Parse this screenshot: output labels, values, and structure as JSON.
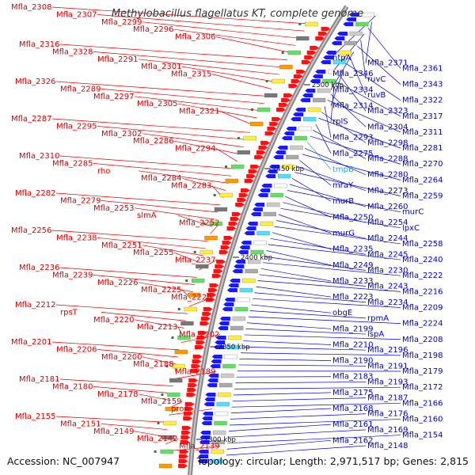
{
  "title": "Methylobacillus flagellatus KT, complete genome",
  "accession": "Accession: NC_007947",
  "topology": "Topology: circular; Length: 2,971,517 bp; Genes: 2,815",
  "colors": {
    "reverse_label": "#e00000",
    "forward_label": "#0000dd",
    "rna_label": "#22aadd",
    "backbone": "#888888",
    "reverse_arrow": "#ff1111",
    "forward_arrow": "#1a1aff",
    "marker": "#228822"
  },
  "kbp_ticks": [
    "2300 kbp",
    "2350 kbp",
    "2400 kbp",
    "2450 kbp",
    "2500 kbp"
  ],
  "left_labels": [
    "Mfla_2308",
    "Mfla_2307",
    "Mfla_2299",
    "Mfla_2296",
    "Mfla_2306",
    "Mfla_2316",
    "Mfla_2328",
    "Mfla_2291",
    "Mfla_2301",
    "Mfla_2315",
    "Mfla_2326",
    "Mfla_2289",
    "Mfla_2297",
    "Mfla_2305",
    "Mfla_2321",
    "Mfla_2287",
    "Mfla_2295",
    "Mfla_2302",
    "Mfla_2286",
    "Mfla_2294",
    "Mfla_2310",
    "Mfla_2285",
    "rho",
    "Mfla_2284",
    "Mfla_2283",
    "Mfla_2282",
    "Mfla_2279",
    "Mfla_2253",
    "slmA",
    "Mfla_2252",
    "Mfla_2256",
    "Mfla_2238",
    "Mfla_2251",
    "Mfla_2255",
    "Mfla_2237",
    "Mfla_2236",
    "Mfla_2239",
    "Mfla_2226",
    "Mfla_2225",
    "Mfla_2228",
    "Mfla_2212",
    "rpsT",
    "Mfla_2220",
    "Mfla_2213",
    "Mfla_2202",
    "Mfla_2201",
    "Mfla_2206",
    "Mfla_2200",
    "Mfla_2188",
    "Mfla_2189",
    "Mfla_2181",
    "Mfla_2180",
    "Mfla_2178",
    "Mfla_2159",
    "proA",
    "Mfla_2155",
    "Mfla_2151",
    "Mfla_2149",
    "Mfla_2142",
    "Mfla_2139"
  ],
  "right_labels": [
    "ntpA",
    "Mfla_2371",
    "Mfla_2361",
    "Mfla_2346",
    "ruvC",
    "Mfla_2343",
    "Mfla_2334",
    "ruvB",
    "Mfla_2322",
    "Mfla_2314",
    "Mfla_2323",
    "Mfla_2317",
    "rplS",
    "Mfla_2304",
    "Mfla_2311",
    "Mfla_2293",
    "Mfla_2298",
    "Mfla_2281",
    "Mfla_2275",
    "Mfla_2288",
    "Mfla_2270",
    "tmpB",
    "Mfla_2280",
    "Mfla_2264",
    "mraY",
    "Mfla_2273",
    "Mfla_2259",
    "murB",
    "Mfla_2260",
    "murC",
    "Mfla_2250",
    "Mfla_2254",
    "lpxC",
    "murG",
    "Mfla_2244",
    "Mfla_2258",
    "Mfla_2235",
    "Mfla_2245",
    "Mfla_2240",
    "Mfla_2249",
    "Mfla_2230",
    "Mfla_2222",
    "Mfla_2233",
    "Mfla_2243",
    "Mfla_2216",
    "Mfla_2223",
    "Mfla_2234",
    "Mfla_2209",
    "obgE",
    "rpmA",
    "Mfla_2224",
    "Mfla_2199",
    "lspA",
    "Mfla_2208",
    "Mfla_2210",
    "Mfla_2196",
    "Mfla_2198",
    "Mfla_2190",
    "Mfla_2191",
    "Mfla_2179",
    "Mfla_2183",
    "Mfla_2193",
    "Mfla_2172",
    "Mfla_2175",
    "Mfla_2187",
    "Mfla_2166",
    "Mfla_2168",
    "Mfla_2176",
    "Mfla_2160",
    "Mfla_2161",
    "Mfla_2169",
    "Mfla_2154",
    "Mfla_2162",
    "Mfla_2148"
  ]
}
